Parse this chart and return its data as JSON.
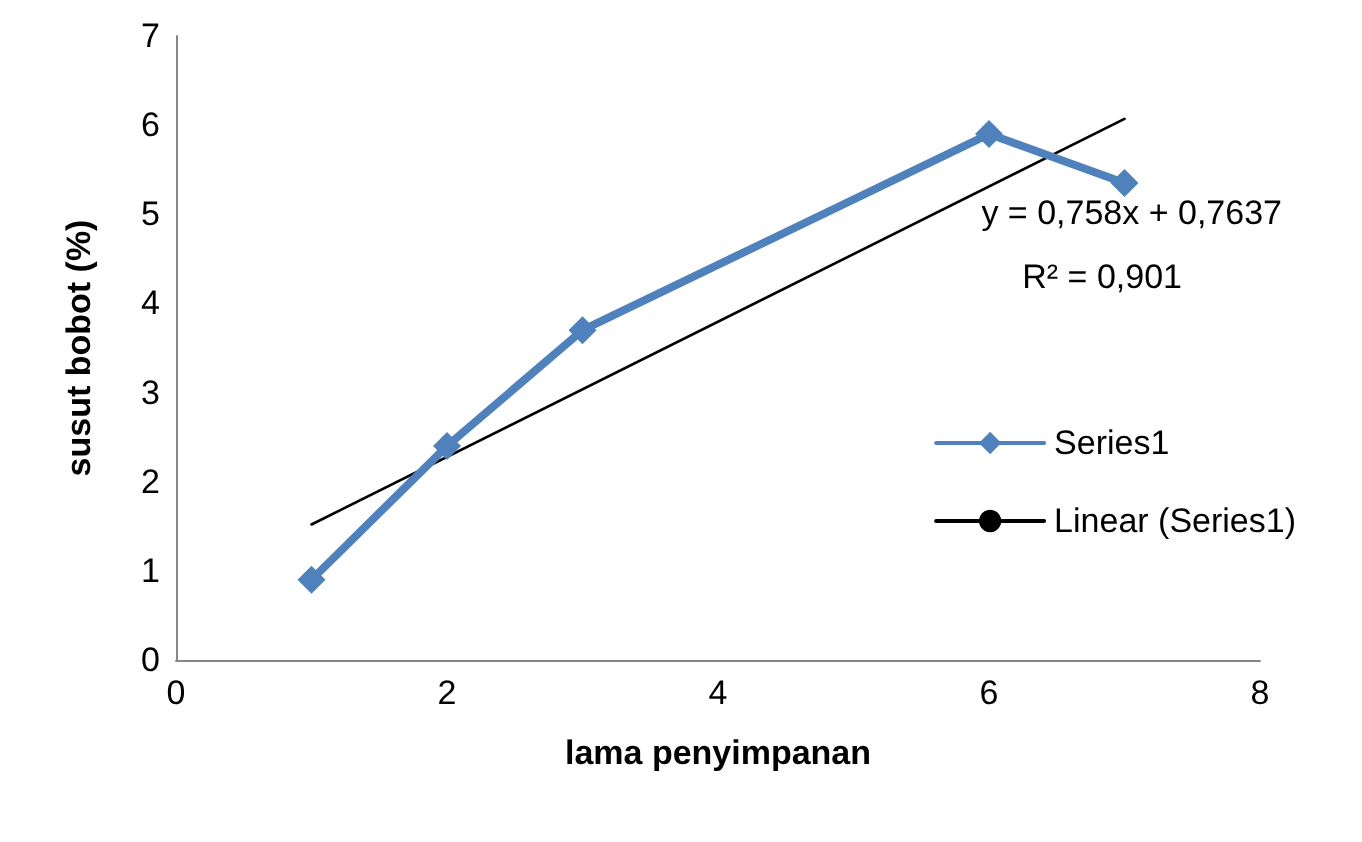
{
  "chart_data": {
    "type": "line",
    "xlabel": "lama penyimpanan",
    "ylabel": "susut bobot (%)",
    "xlim": [
      0,
      8
    ],
    "xticks": [
      0,
      2,
      4,
      6,
      8
    ],
    "ylim": [
      0,
      7
    ],
    "yticks": [
      0,
      1,
      2,
      3,
      4,
      5,
      6,
      7
    ],
    "series": [
      {
        "name": "Series1",
        "color": "#4f81bd",
        "x": [
          1,
          2,
          3,
          6,
          7
        ],
        "values": [
          0.9,
          2.4,
          3.7,
          5.9,
          5.35
        ],
        "marker": "diamond",
        "line_style": "solid"
      },
      {
        "name": "Linear (Series1)",
        "color": "#000000",
        "x": [
          1,
          7
        ],
        "values": [
          1.52,
          6.07
        ],
        "marker": "none",
        "line_style": "solid"
      }
    ],
    "annotations": [
      "y = 0,758x + 0,7637",
      "R² = 0,901"
    ],
    "grid": false,
    "legend": "right"
  }
}
